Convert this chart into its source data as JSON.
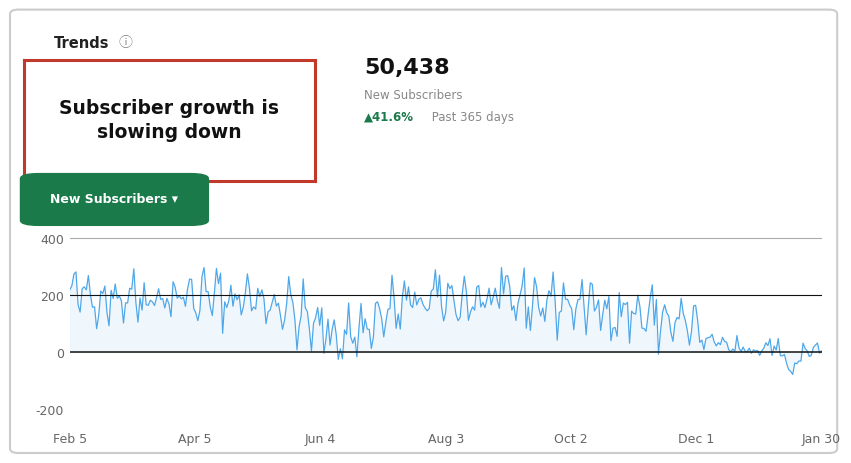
{
  "title": "Trends",
  "headline": "Subscriber growth is\nslowing down",
  "total_subscribers": "50,438",
  "label_new_subscribers": "New Subscribers",
  "growth_pct": "41.6%",
  "growth_days": "Past 365 days",
  "button_text": "New Subscribers ▾",
  "button_color": "#1a7a4a",
  "button_text_color": "#ffffff",
  "line_color": "#4da6e8",
  "line_color_fill": "#cce5f8",
  "background_color": "#ffffff",
  "red_box_color": "#c0392b",
  "green_text_color": "#1a7a4a",
  "yticks": [
    -200,
    0,
    200,
    400
  ],
  "ymin": -260,
  "ymax": 440,
  "xtick_labels": [
    "Feb 5",
    "Apr 5",
    "Jun 4",
    "Aug 3",
    "Oct 2",
    "Dec 1",
    "Jan 30"
  ],
  "hline_color": "#111111",
  "hline_top_color": "#aaaaaa",
  "outer_border_color": "#cccccc"
}
